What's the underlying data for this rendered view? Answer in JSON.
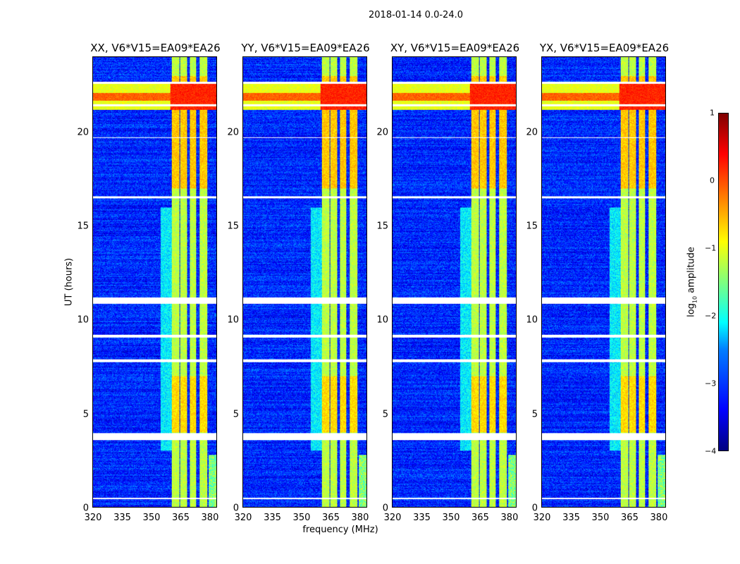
{
  "suptitle": "2018-01-14 0.0-24.0",
  "xlabel": "frequency (MHz)",
  "ylabel": "UT (hours)",
  "chart_data": [
    {
      "type": "heatmap",
      "title": "XX, V6*V15=EA09*EA26",
      "xlim": [
        320,
        384
      ],
      "ylim": [
        0,
        24
      ]
    },
    {
      "type": "heatmap",
      "title": "YY, V6*V15=EA09*EA26",
      "xlim": [
        320,
        384
      ],
      "ylim": [
        0,
        24
      ]
    },
    {
      "type": "heatmap",
      "title": "XY, V6*V15=EA09*EA26",
      "xlim": [
        320,
        384
      ],
      "ylim": [
        0,
        24
      ]
    },
    {
      "type": "heatmap",
      "title": "YX, V6*V15=EA09*EA26",
      "xlim": [
        320,
        384
      ],
      "ylim": [
        0,
        24
      ]
    }
  ],
  "shared": {
    "xticks": [
      "320",
      "335",
      "350",
      "365",
      "380"
    ],
    "xtick_values": [
      320,
      335,
      350,
      365,
      380
    ],
    "yticks": [
      "0",
      "5",
      "10",
      "15",
      "20"
    ],
    "ytick_values": [
      0,
      5,
      10,
      15,
      20
    ],
    "background_log_amp": -3.2,
    "rfi_bands_mhz": [
      [
        360.5,
        364.5
      ],
      [
        365,
        368.5
      ],
      [
        370,
        373.5
      ],
      [
        375,
        379
      ]
    ],
    "rfi_band_log_amp": -1.2,
    "bright_hours": [
      [
        21.2,
        22.6
      ]
    ],
    "flagged_hours": [
      [
        0.45,
        0.5
      ],
      [
        3.6,
        3.95
      ],
      [
        7.75,
        7.9
      ],
      [
        9.05,
        9.2
      ],
      [
        10.85,
        11.2
      ],
      [
        16.5,
        16.6
      ],
      [
        19.7,
        19.75
      ],
      [
        21.4,
        21.5
      ],
      [
        22.6,
        22.7
      ]
    ],
    "broadband_low_freq": {
      "mhz": [
        380,
        384
      ],
      "hours": [
        0,
        2.8
      ],
      "log_amp": -1.5
    },
    "colorbar": {
      "label": "log10 amplitude",
      "ticks": [
        "1",
        "0",
        "−1",
        "−2",
        "−3",
        "−4"
      ],
      "tick_values": [
        1,
        0,
        -1,
        -2,
        -3,
        -4
      ],
      "range": [
        -4,
        1
      ],
      "colormap": "jet"
    }
  }
}
